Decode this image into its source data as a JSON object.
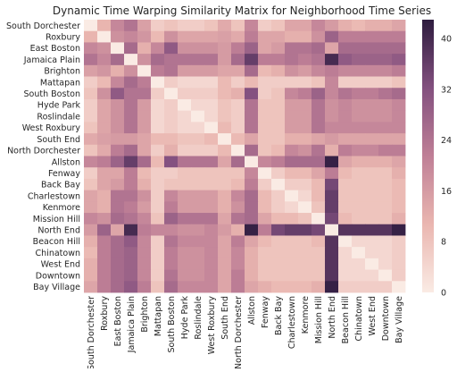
{
  "chart_data": {
    "type": "heatmap",
    "title": "Dynamic Time Warping Similarity Matrix for Neighborhood Time Series",
    "labels": [
      "South Dorchester",
      "Roxbury",
      "East Boston",
      "Jamaica Plain",
      "Brighton",
      "Mattapan",
      "South Boston",
      "Hyde Park",
      "Roslindale",
      "West Roxbury",
      "South End",
      "North Dorchester",
      "Allston",
      "Fenway",
      "Back Bay",
      "Charlestown",
      "Kenmore",
      "Mission Hill",
      "North End",
      "Beacon Hill",
      "Chinatown",
      "West End",
      "Downtown",
      "Bay Village"
    ],
    "row_labels": [
      "South Dorchester",
      "Roxbury",
      "East Boston",
      "Jamaica Plain",
      "Brighton",
      "Mattapan",
      "South Boston",
      "Hyde Park",
      "Roslindale",
      "West Roxbury",
      "South End",
      "North Dorchester",
      "Allston",
      "Fenway",
      "Back Bay",
      "Charlestown",
      "Kenmore",
      "Mission Hill",
      "North End",
      "Beacon Hill",
      "Chinatown",
      "West End",
      "Downtown",
      "Bay Village"
    ],
    "col_labels": [
      "South Dorchester",
      "Roxbury",
      "East Boston",
      "Jamaica Plain",
      "Brighton",
      "Mattapan",
      "South Boston",
      "Hyde Park",
      "Roslindale",
      "West Roxbury",
      "South End",
      "North Dorchester",
      "Allston",
      "Fenway",
      "Back Bay",
      "Charlestown",
      "Kenmore",
      "Mission Hill",
      "North End",
      "Beacon Hill",
      "Chinatown",
      "West End",
      "Downtown",
      "Bay Village"
    ],
    "values": [
      [
        0,
        11,
        20,
        24,
        15,
        6,
        8,
        6,
        6,
        8,
        13,
        8,
        20,
        6,
        8,
        14,
        14,
        20,
        16,
        12,
        10,
        12,
        12,
        14
      ],
      [
        11,
        0,
        18,
        20,
        17,
        10,
        18,
        14,
        14,
        14,
        15,
        13,
        22,
        14,
        14,
        12,
        12,
        18,
        28,
        22,
        22,
        22,
        22,
        22
      ],
      [
        20,
        18,
        0,
        26,
        12,
        20,
        30,
        18,
        18,
        18,
        16,
        22,
        28,
        14,
        16,
        24,
        24,
        26,
        14,
        26,
        26,
        26,
        26,
        26
      ],
      [
        24,
        20,
        26,
        0,
        18,
        26,
        24,
        24,
        24,
        24,
        16,
        26,
        36,
        22,
        22,
        24,
        22,
        24,
        40,
        30,
        28,
        28,
        28,
        30
      ],
      [
        15,
        17,
        12,
        18,
        0,
        22,
        24,
        16,
        16,
        16,
        14,
        14,
        26,
        10,
        12,
        18,
        16,
        20,
        22,
        20,
        20,
        20,
        20,
        22
      ],
      [
        6,
        10,
        20,
        26,
        22,
        0,
        6,
        4,
        4,
        4,
        10,
        6,
        10,
        6,
        6,
        6,
        6,
        8,
        20,
        6,
        6,
        6,
        6,
        8
      ],
      [
        8,
        18,
        30,
        24,
        24,
        6,
        0,
        6,
        6,
        6,
        10,
        12,
        32,
        6,
        8,
        20,
        22,
        28,
        20,
        24,
        22,
        22,
        24,
        26
      ],
      [
        6,
        14,
        18,
        24,
        16,
        4,
        6,
        0,
        4,
        4,
        8,
        6,
        24,
        8,
        8,
        16,
        16,
        24,
        18,
        20,
        18,
        18,
        18,
        20
      ],
      [
        6,
        14,
        18,
        24,
        16,
        4,
        6,
        4,
        0,
        4,
        8,
        6,
        24,
        8,
        8,
        16,
        16,
        24,
        18,
        20,
        18,
        18,
        18,
        20
      ],
      [
        8,
        14,
        18,
        24,
        16,
        4,
        6,
        4,
        4,
        0,
        10,
        6,
        24,
        8,
        8,
        16,
        16,
        24,
        20,
        20,
        20,
        20,
        20,
        20
      ],
      [
        13,
        15,
        16,
        16,
        14,
        10,
        10,
        8,
        8,
        10,
        0,
        10,
        14,
        8,
        8,
        12,
        12,
        14,
        16,
        14,
        14,
        14,
        14,
        14
      ],
      [
        8,
        13,
        22,
        26,
        14,
        6,
        12,
        6,
        6,
        6,
        10,
        0,
        26,
        8,
        10,
        20,
        18,
        24,
        12,
        22,
        20,
        20,
        22,
        22
      ],
      [
        20,
        22,
        28,
        36,
        26,
        10,
        32,
        24,
        24,
        24,
        14,
        26,
        0,
        20,
        22,
        26,
        26,
        26,
        42,
        14,
        12,
        12,
        12,
        14
      ],
      [
        6,
        14,
        14,
        22,
        10,
        6,
        6,
        8,
        8,
        8,
        8,
        8,
        20,
        0,
        6,
        10,
        10,
        14,
        22,
        10,
        8,
        8,
        8,
        12
      ],
      [
        8,
        14,
        16,
        22,
        12,
        6,
        8,
        8,
        8,
        8,
        8,
        10,
        22,
        6,
        0,
        6,
        6,
        10,
        34,
        8,
        8,
        8,
        8,
        10
      ],
      [
        14,
        12,
        24,
        24,
        18,
        6,
        20,
        16,
        16,
        16,
        12,
        20,
        26,
        10,
        6,
        0,
        4,
        10,
        36,
        8,
        8,
        8,
        8,
        10
      ],
      [
        14,
        12,
        24,
        22,
        16,
        6,
        22,
        16,
        16,
        16,
        12,
        18,
        26,
        10,
        6,
        4,
        0,
        8,
        36,
        8,
        8,
        8,
        8,
        10
      ],
      [
        20,
        18,
        26,
        24,
        20,
        8,
        28,
        24,
        24,
        24,
        14,
        24,
        26,
        14,
        10,
        10,
        8,
        0,
        34,
        10,
        8,
        8,
        8,
        12
      ],
      [
        16,
        28,
        14,
        40,
        22,
        20,
        20,
        18,
        18,
        20,
        16,
        12,
        42,
        22,
        34,
        36,
        36,
        34,
        0,
        38,
        38,
        38,
        38,
        42
      ],
      [
        12,
        22,
        26,
        30,
        20,
        6,
        24,
        20,
        20,
        20,
        14,
        22,
        14,
        10,
        8,
        8,
        8,
        10,
        38,
        0,
        4,
        4,
        4,
        6
      ],
      [
        10,
        22,
        26,
        28,
        20,
        6,
        22,
        18,
        18,
        20,
        14,
        20,
        12,
        8,
        8,
        8,
        8,
        8,
        38,
        4,
        0,
        4,
        4,
        6
      ],
      [
        12,
        22,
        26,
        28,
        20,
        6,
        22,
        18,
        18,
        20,
        14,
        20,
        12,
        8,
        8,
        8,
        8,
        8,
        38,
        4,
        4,
        0,
        4,
        6
      ],
      [
        12,
        22,
        26,
        28,
        20,
        6,
        24,
        18,
        18,
        20,
        14,
        22,
        12,
        8,
        8,
        8,
        8,
        8,
        38,
        4,
        4,
        4,
        0,
        6
      ],
      [
        14,
        22,
        26,
        30,
        22,
        8,
        26,
        20,
        20,
        20,
        14,
        22,
        14,
        12,
        10,
        10,
        10,
        12,
        42,
        6,
        6,
        6,
        6,
        0
      ]
    ],
    "vmin": 0,
    "vmax": 43,
    "colorbar_ticks": [
      0,
      8,
      16,
      24,
      32,
      40
    ],
    "colors": {
      "low": "#faebe4",
      "q1": "#eab6b0",
      "mid": "#bf7f96",
      "q3": "#83507f",
      "high": "#2e1c3f"
    },
    "grid": false
  }
}
